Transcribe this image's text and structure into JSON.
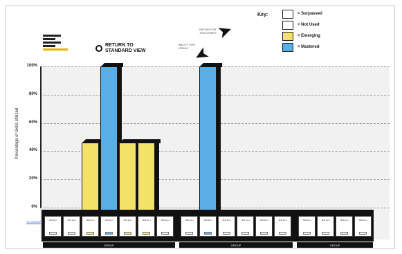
{
  "header": {
    "return_button": "RETURN TO STANDARD VIEW",
    "annotation_top": "RATING FOR THIS GRAPH",
    "annotation_mid": "ABOUT THIS GRAPH"
  },
  "key": {
    "title": "Key:",
    "items": [
      {
        "label": "= Surpassed",
        "color": "#ffffff"
      },
      {
        "label": "= Not Used",
        "color": "#ffffff"
      },
      {
        "label": "= Emerging",
        "color": "#f2e268"
      },
      {
        "label": "= Mastered",
        "color": "#5aaee6"
      }
    ]
  },
  "chart": {
    "y_title": "Percentage of Skills Utilized",
    "y_ticks": [
      "100%",
      "80%",
      "60%",
      "40%",
      "20%",
      "0%"
    ],
    "side_link": "TO GROUP"
  },
  "chart_data": {
    "type": "bar",
    "categories": [
      "",
      "",
      "",
      "",
      "",
      "",
      "",
      "",
      "",
      "",
      "",
      "",
      "",
      "",
      "",
      "",
      ""
    ],
    "series_colors": {
      "emerging": "#f2e268",
      "mastered": "#5aaee6"
    },
    "bars": [
      {
        "index": 2,
        "value": 46,
        "status": "emerging"
      },
      {
        "index": 3,
        "value": 100,
        "status": "mastered"
      },
      {
        "index": 4,
        "value": 46,
        "status": "emerging"
      },
      {
        "index": 5,
        "value": 46,
        "status": "emerging"
      },
      {
        "index": 8,
        "value": 100,
        "status": "mastered"
      }
    ],
    "ylim": [
      0,
      100
    ]
  },
  "groups": [
    {
      "label": "GROUP",
      "start": 0,
      "end": 7
    },
    {
      "label": "GROUP",
      "start": 7,
      "end": 13
    },
    {
      "label": "GROUP",
      "start": 13,
      "end": 17
    }
  ],
  "cells": [
    {
      "label": "Skill item",
      "chip": "none"
    },
    {
      "label": "Skill item",
      "chip": "none"
    },
    {
      "label": "Skill item",
      "chip": "emerging"
    },
    {
      "label": "Skill item",
      "chip": "mastered"
    },
    {
      "label": "Skill item",
      "chip": "emerging"
    },
    {
      "label": "Skill item",
      "chip": "emerging"
    },
    {
      "label": "Skill item",
      "chip": "none"
    },
    {
      "label": "Skill item",
      "chip": "none"
    },
    {
      "label": "Skill item",
      "chip": "mastered"
    },
    {
      "label": "Skill item",
      "chip": "none"
    },
    {
      "label": "Skill item",
      "chip": "none"
    },
    {
      "label": "Skill item",
      "chip": "none"
    },
    {
      "label": "Skill item",
      "chip": "none"
    },
    {
      "label": "Skill item",
      "chip": "none"
    },
    {
      "label": "Skill item",
      "chip": "none"
    },
    {
      "label": "Skill item",
      "chip": "none"
    },
    {
      "label": "Skill item",
      "chip": "none"
    }
  ]
}
